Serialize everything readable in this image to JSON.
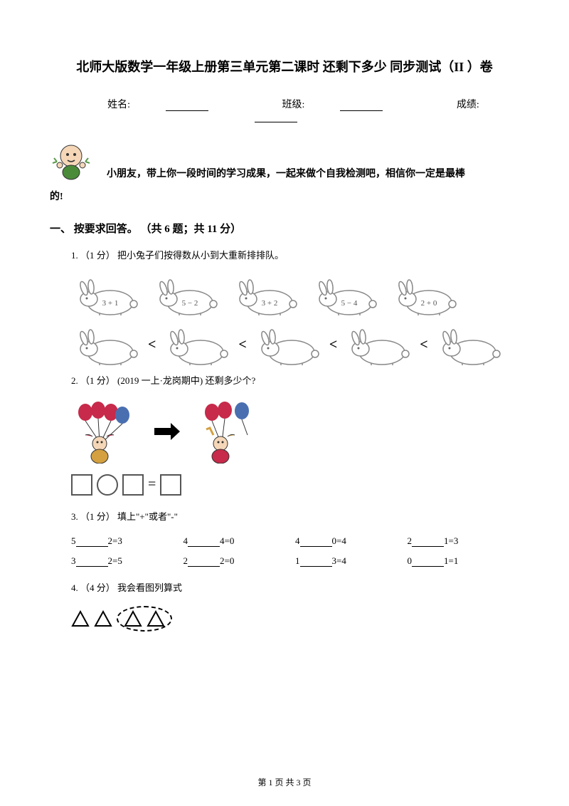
{
  "title": "北师大版数学一年级上册第三单元第二课时 还剩下多少 同步测试（II ）卷",
  "info": {
    "name_label": "姓名:",
    "class_label": "班级:",
    "score_label": "成绩:"
  },
  "intro": {
    "line1": "小朋友，带上你一段时间的学习成果，一起来做个自我检测吧，相信你一定是最棒",
    "line2": "的!"
  },
  "section1": {
    "header": "一、 按要求回答。 （共 6 题；共 11 分）",
    "q1": {
      "text": "1.  （1 分） 把小兔子们按得数从小到大重新排排队。",
      "rabbits_row1": [
        "3 + 1",
        "5 − 2",
        "3 + 2",
        "5 − 4",
        "2 + 0"
      ],
      "rabbit_color": "#888888",
      "lt_symbol": "<"
    },
    "q2": {
      "text": "2.  （1 分） (2019 一上·龙岗期中) 还剩多少个?",
      "balloon_colors": {
        "red": "#c72a4a",
        "blue": "#4a6fb0",
        "person": "#d4a040",
        "arrow": "#000000"
      },
      "eq_symbol": "="
    },
    "q3": {
      "text": "3.  （1 分） 填上\"+\"或者\"-\"",
      "items": [
        {
          "a": "5",
          "b": "2=3"
        },
        {
          "a": "4",
          "b": "4=0"
        },
        {
          "a": "4",
          "b": "0=4"
        },
        {
          "a": "2",
          "b": "1=3"
        },
        {
          "a": "3",
          "b": "2=5"
        },
        {
          "a": "2",
          "b": "2=0"
        },
        {
          "a": "1",
          "b": "3=4"
        },
        {
          "a": "0",
          "b": "1=1"
        }
      ]
    },
    "q4": {
      "text": "4.  （4 分） 我会看图列算式",
      "triangle_count_outside": 2,
      "triangle_count_inside": 2
    }
  },
  "footer": "第 1 页 共 3 页"
}
